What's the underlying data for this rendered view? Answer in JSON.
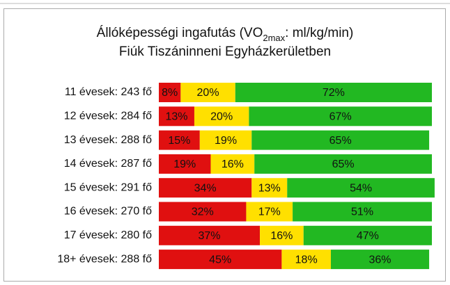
{
  "chart_data": {
    "type": "stacked-bar-horizontal",
    "title": [
      {
        "text": "Állóképességi ingafutás (VO"
      },
      {
        "text": "2max",
        "sub": true
      },
      {
        "text": ": ml/kg/min)"
      }
    ],
    "subtitle": "Fiúk Tiszáninneni Egyházkerületben",
    "categories": [
      "11 évesek: 243 fő",
      "12 évesek: 284 fő",
      "13 évesek: 288 fő",
      "14 évesek: 287 fő",
      "15 évesek: 291 fő",
      "16 évesek: 270 fő",
      "17 évesek: 280 fő",
      "18+ évesek: 288 fő"
    ],
    "xlim": [
      0,
      100
    ],
    "series": [
      {
        "color": "#e01010",
        "values": [
          8,
          13,
          15,
          19,
          34,
          32,
          37,
          45
        ],
        "value_labels": [
          "8%",
          "13%",
          "15%",
          "19%",
          "34%",
          "32%",
          "37%",
          "45%"
        ]
      },
      {
        "color": "#ffe000",
        "values": [
          20,
          20,
          19,
          16,
          13,
          17,
          16,
          18
        ],
        "value_labels": [
          "20%",
          "20%",
          "19%",
          "16%",
          "13%",
          "17%",
          "16%",
          "18%"
        ]
      },
      {
        "color": "#22b822",
        "values": [
          72,
          67,
          65,
          65,
          54,
          51,
          47,
          36
        ],
        "value_labels": [
          "72%",
          "67%",
          "65%",
          "65%",
          "54%",
          "51%",
          "47%",
          "36%"
        ]
      }
    ]
  }
}
